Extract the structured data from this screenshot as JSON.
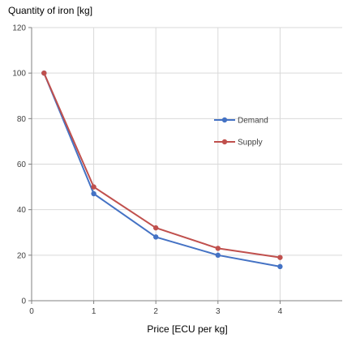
{
  "chart_data": {
    "type": "line",
    "xlabel": "Price [ECU per kg]",
    "ylabel": "Quantity of iron [kg]",
    "xlim": [
      0,
      5
    ],
    "ylim": [
      0,
      120
    ],
    "x_ticks": [
      0,
      1,
      2,
      3,
      4
    ],
    "y_ticks": [
      0,
      20,
      40,
      60,
      80,
      100,
      120
    ],
    "grid": true,
    "legend_position": "right",
    "series": [
      {
        "name": "Demand",
        "color": "#4472C4",
        "x": [
          0.2,
          1,
          2,
          3,
          4
        ],
        "y": [
          100,
          47,
          28,
          20,
          15
        ]
      },
      {
        "name": "Supply",
        "color": "#C0504D",
        "x": [
          0.2,
          1,
          2,
          3,
          4
        ],
        "y": [
          100,
          50,
          32,
          23,
          19
        ]
      }
    ]
  }
}
